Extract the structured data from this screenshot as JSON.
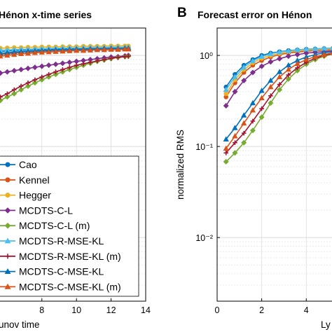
{
  "chart_data": [
    {
      "type": "line",
      "title": "Hénon x-time series",
      "xlabel": "unov time",
      "ylabel": "",
      "xlim": [
        5.5,
        14
      ],
      "ylim": [
        0.002,
        2
      ],
      "yscale": "log",
      "xticks": [
        "8",
        "10",
        "12",
        "14"
      ],
      "grid": true,
      "legend_position": "bottom-left",
      "series": [
        {
          "name": "Cao",
          "color": "#0072BD",
          "marker": "circle",
          "x": [
            5.6,
            6.0,
            6.4,
            6.8,
            7.2,
            7.6,
            8.0,
            8.4,
            8.8,
            9.2,
            9.6,
            10.0,
            10.4,
            10.8,
            11.2,
            11.6,
            12.0,
            12.4,
            12.8,
            13.0
          ],
          "y": [
            1.1,
            1.12,
            1.13,
            1.14,
            1.15,
            1.16,
            1.16,
            1.17,
            1.18,
            1.18,
            1.19,
            1.19,
            1.2,
            1.2,
            1.21,
            1.21,
            1.21,
            1.22,
            1.22,
            1.22
          ]
        },
        {
          "name": "Kennel",
          "color": "#D95319",
          "marker": "circle",
          "x": [
            5.6,
            6.0,
            6.4,
            6.8,
            7.2,
            7.6,
            8.0,
            8.4,
            8.8,
            9.2,
            9.6,
            10.0,
            10.4,
            10.8,
            11.2,
            11.6,
            12.0,
            12.4,
            12.8,
            13.0
          ],
          "y": [
            1.02,
            1.04,
            1.06,
            1.08,
            1.09,
            1.1,
            1.11,
            1.12,
            1.13,
            1.14,
            1.14,
            1.15,
            1.16,
            1.16,
            1.17,
            1.17,
            1.18,
            1.18,
            1.18,
            1.19
          ]
        },
        {
          "name": "Hegger",
          "color": "#EDB120",
          "marker": "circle",
          "x": [
            5.6,
            6.0,
            6.4,
            6.8,
            7.2,
            7.6,
            8.0,
            8.4,
            8.8,
            9.2,
            9.6,
            10.0,
            10.4,
            10.8,
            11.2,
            11.6,
            12.0,
            12.4,
            12.8,
            13.0
          ],
          "y": [
            1.2,
            1.21,
            1.22,
            1.22,
            1.23,
            1.23,
            1.24,
            1.24,
            1.24,
            1.25,
            1.25,
            1.25,
            1.26,
            1.26,
            1.26,
            1.26,
            1.27,
            1.27,
            1.27,
            1.27
          ]
        },
        {
          "name": "MCDTS-C-L",
          "color": "#7E2F8E",
          "marker": "diamond",
          "x": [
            5.6,
            6.0,
            6.4,
            6.8,
            7.2,
            7.6,
            8.0,
            8.4,
            8.8,
            9.2,
            9.6,
            10.0,
            10.4,
            10.8,
            11.2,
            11.6,
            12.0,
            12.4,
            12.8,
            13.0
          ],
          "y": [
            0.64,
            0.66,
            0.68,
            0.7,
            0.72,
            0.74,
            0.76,
            0.78,
            0.8,
            0.82,
            0.84,
            0.86,
            0.88,
            0.9,
            0.92,
            0.94,
            0.96,
            0.97,
            0.99,
            1.0
          ]
        },
        {
          "name": "MCDTS-C-L (m)",
          "color": "#77AC30",
          "marker": "diamond",
          "x": [
            5.6,
            6.0,
            6.4,
            6.8,
            7.2,
            7.6,
            8.0,
            8.4,
            8.8,
            9.2,
            9.6,
            10.0,
            10.4,
            10.8,
            11.2,
            11.6,
            12.0,
            12.4,
            12.8,
            13.0
          ],
          "y": [
            0.32,
            0.35,
            0.38,
            0.42,
            0.46,
            0.5,
            0.54,
            0.58,
            0.62,
            0.66,
            0.7,
            0.74,
            0.78,
            0.82,
            0.86,
            0.89,
            0.92,
            0.95,
            0.97,
            0.98
          ]
        },
        {
          "name": "MCDTS-R-MSE-KL",
          "color": "#4DBEEE",
          "marker": "triangle",
          "x": [
            5.6,
            6.0,
            6.4,
            6.8,
            7.2,
            7.6,
            8.0,
            8.4,
            8.8,
            9.2,
            9.6,
            10.0,
            10.4,
            10.8,
            11.2,
            11.6,
            12.0,
            12.4,
            12.8,
            13.0
          ],
          "y": [
            1.14,
            1.15,
            1.16,
            1.17,
            1.17,
            1.18,
            1.19,
            1.19,
            1.2,
            1.2,
            1.21,
            1.21,
            1.21,
            1.22,
            1.22,
            1.22,
            1.23,
            1.23,
            1.23,
            1.23
          ]
        },
        {
          "name": "MCDTS-R-MSE-KL (m)",
          "color": "#A2142F",
          "marker": "plus",
          "x": [
            5.6,
            6.0,
            6.4,
            6.8,
            7.2,
            7.6,
            8.0,
            8.4,
            8.8,
            9.2,
            9.6,
            10.0,
            10.4,
            10.8,
            11.2,
            11.6,
            12.0,
            12.4,
            12.8,
            13.0
          ],
          "y": [
            0.35,
            0.38,
            0.42,
            0.46,
            0.5,
            0.54,
            0.58,
            0.62,
            0.66,
            0.7,
            0.74,
            0.78,
            0.81,
            0.84,
            0.87,
            0.9,
            0.93,
            0.95,
            0.97,
            0.98
          ]
        },
        {
          "name": "MCDTS-C-MSE-KL",
          "color": "#0072BD",
          "marker": "triangle",
          "x": [
            5.6,
            6.0,
            6.4,
            6.8,
            7.2,
            7.6,
            8.0,
            8.4,
            8.8,
            9.2,
            9.6,
            10.0,
            10.4,
            10.8,
            11.2,
            11.6,
            12.0,
            12.4,
            12.8,
            13.0
          ],
          "y": [
            1.05,
            1.07,
            1.09,
            1.1,
            1.11,
            1.12,
            1.13,
            1.14,
            1.15,
            1.15,
            1.16,
            1.17,
            1.17,
            1.18,
            1.18,
            1.19,
            1.19,
            1.19,
            1.2,
            1.2
          ]
        },
        {
          "name": "MCDTS-C-MSE-KL (m)",
          "color": "#D95319",
          "marker": "triangle",
          "x": [
            5.6,
            6.0,
            6.4,
            6.8,
            7.2,
            7.6,
            8.0,
            8.4,
            8.8,
            9.2,
            9.6,
            10.0,
            10.4,
            10.8,
            11.2,
            11.6,
            12.0,
            12.4,
            12.8,
            13.0
          ],
          "y": [
            0.98,
            1.0,
            1.02,
            1.04,
            1.05,
            1.07,
            1.08,
            1.09,
            1.1,
            1.11,
            1.12,
            1.13,
            1.13,
            1.14,
            1.15,
            1.15,
            1.16,
            1.16,
            1.17,
            1.17
          ]
        }
      ]
    },
    {
      "type": "line",
      "title": "Forecast error on Hénon",
      "xlabel": "Ly",
      "ylabel": "normalized RMS",
      "xlim": [
        0,
        5.5
      ],
      "ylim": [
        0.002,
        2
      ],
      "yscale": "log",
      "xticks": [
        "0",
        "2",
        "4"
      ],
      "yticks": [
        "10⁰",
        "10⁻¹",
        "10⁻²"
      ],
      "grid": true,
      "series": [
        {
          "name": "Cao",
          "color": "#0072BD",
          "marker": "circle",
          "x": [
            0.4,
            0.8,
            1.2,
            1.6,
            2.0,
            2.4,
            2.8,
            3.2,
            3.6,
            4.0,
            4.4,
            4.8,
            5.2
          ],
          "y": [
            0.45,
            0.62,
            0.78,
            0.9,
            1.0,
            1.06,
            1.1,
            1.13,
            1.15,
            1.17,
            1.18,
            1.19,
            1.2
          ]
        },
        {
          "name": "Kennel",
          "color": "#D95319",
          "marker": "circle",
          "x": [
            0.4,
            0.8,
            1.2,
            1.6,
            2.0,
            2.4,
            2.8,
            3.2,
            3.6,
            4.0,
            4.4,
            4.8,
            5.2
          ],
          "y": [
            0.35,
            0.5,
            0.65,
            0.78,
            0.88,
            0.96,
            1.02,
            1.06,
            1.09,
            1.11,
            1.13,
            1.14,
            1.15
          ]
        },
        {
          "name": "Hegger",
          "color": "#EDB120",
          "marker": "circle",
          "x": [
            0.4,
            0.8,
            1.2,
            1.6,
            2.0,
            2.4,
            2.8,
            3.2,
            3.6,
            4.0,
            4.4,
            4.8,
            5.2
          ],
          "y": [
            0.38,
            0.54,
            0.7,
            0.83,
            0.93,
            1.0,
            1.05,
            1.09,
            1.12,
            1.14,
            1.16,
            1.17,
            1.18
          ]
        },
        {
          "name": "MCDTS-C-L",
          "color": "#7E2F8E",
          "marker": "diamond",
          "x": [
            0.4,
            0.8,
            1.2,
            1.6,
            2.0,
            2.4,
            2.8,
            3.2,
            3.6,
            4.0,
            4.4,
            4.8,
            5.2
          ],
          "y": [
            0.28,
            0.4,
            0.53,
            0.65,
            0.76,
            0.85,
            0.92,
            0.98,
            1.02,
            1.06,
            1.08,
            1.1,
            1.12
          ]
        },
        {
          "name": "MCDTS-C-L (m)",
          "color": "#77AC30",
          "marker": "diamond",
          "x": [
            0.4,
            0.8,
            1.2,
            1.6,
            2.0,
            2.4,
            2.8,
            3.2,
            3.6,
            4.0,
            4.4,
            4.8,
            5.2
          ],
          "y": [
            0.068,
            0.085,
            0.11,
            0.15,
            0.21,
            0.3,
            0.42,
            0.55,
            0.68,
            0.8,
            0.9,
            0.98,
            1.04
          ]
        },
        {
          "name": "MCDTS-R-MSE-KL",
          "color": "#4DBEEE",
          "marker": "triangle",
          "x": [
            0.4,
            0.8,
            1.2,
            1.6,
            2.0,
            2.4,
            2.8,
            3.2,
            3.6,
            4.0,
            4.4,
            4.8,
            5.2
          ],
          "y": [
            0.42,
            0.58,
            0.74,
            0.87,
            0.97,
            1.04,
            1.09,
            1.12,
            1.15,
            1.17,
            1.18,
            1.19,
            1.2
          ]
        },
        {
          "name": "MCDTS-R-MSE-KL (m)",
          "color": "#A2142F",
          "marker": "plus",
          "x": [
            0.4,
            0.8,
            1.2,
            1.6,
            2.0,
            2.4,
            2.8,
            3.2,
            3.6,
            4.0,
            4.4,
            4.8,
            5.2
          ],
          "y": [
            0.085,
            0.11,
            0.14,
            0.19,
            0.26,
            0.36,
            0.48,
            0.61,
            0.73,
            0.84,
            0.93,
            1.0,
            1.05
          ]
        },
        {
          "name": "MCDTS-C-MSE-KL",
          "color": "#0072BD",
          "marker": "triangle",
          "x": [
            0.4,
            0.8,
            1.2,
            1.6,
            2.0,
            2.4,
            2.8,
            3.2,
            3.6,
            4.0,
            4.4,
            4.8,
            5.2
          ],
          "y": [
            0.12,
            0.16,
            0.22,
            0.3,
            0.41,
            0.53,
            0.66,
            0.78,
            0.88,
            0.96,
            1.02,
            1.07,
            1.1
          ]
        },
        {
          "name": "MCDTS-C-MSE-KL (m)",
          "color": "#D95319",
          "marker": "triangle",
          "x": [
            0.4,
            0.8,
            1.2,
            1.6,
            2.0,
            2.4,
            2.8,
            3.2,
            3.6,
            4.0,
            4.4,
            4.8,
            5.2
          ],
          "y": [
            0.095,
            0.13,
            0.18,
            0.25,
            0.34,
            0.45,
            0.58,
            0.7,
            0.81,
            0.9,
            0.97,
            1.02,
            1.07
          ]
        }
      ]
    }
  ],
  "panel_labels": [
    "B"
  ]
}
